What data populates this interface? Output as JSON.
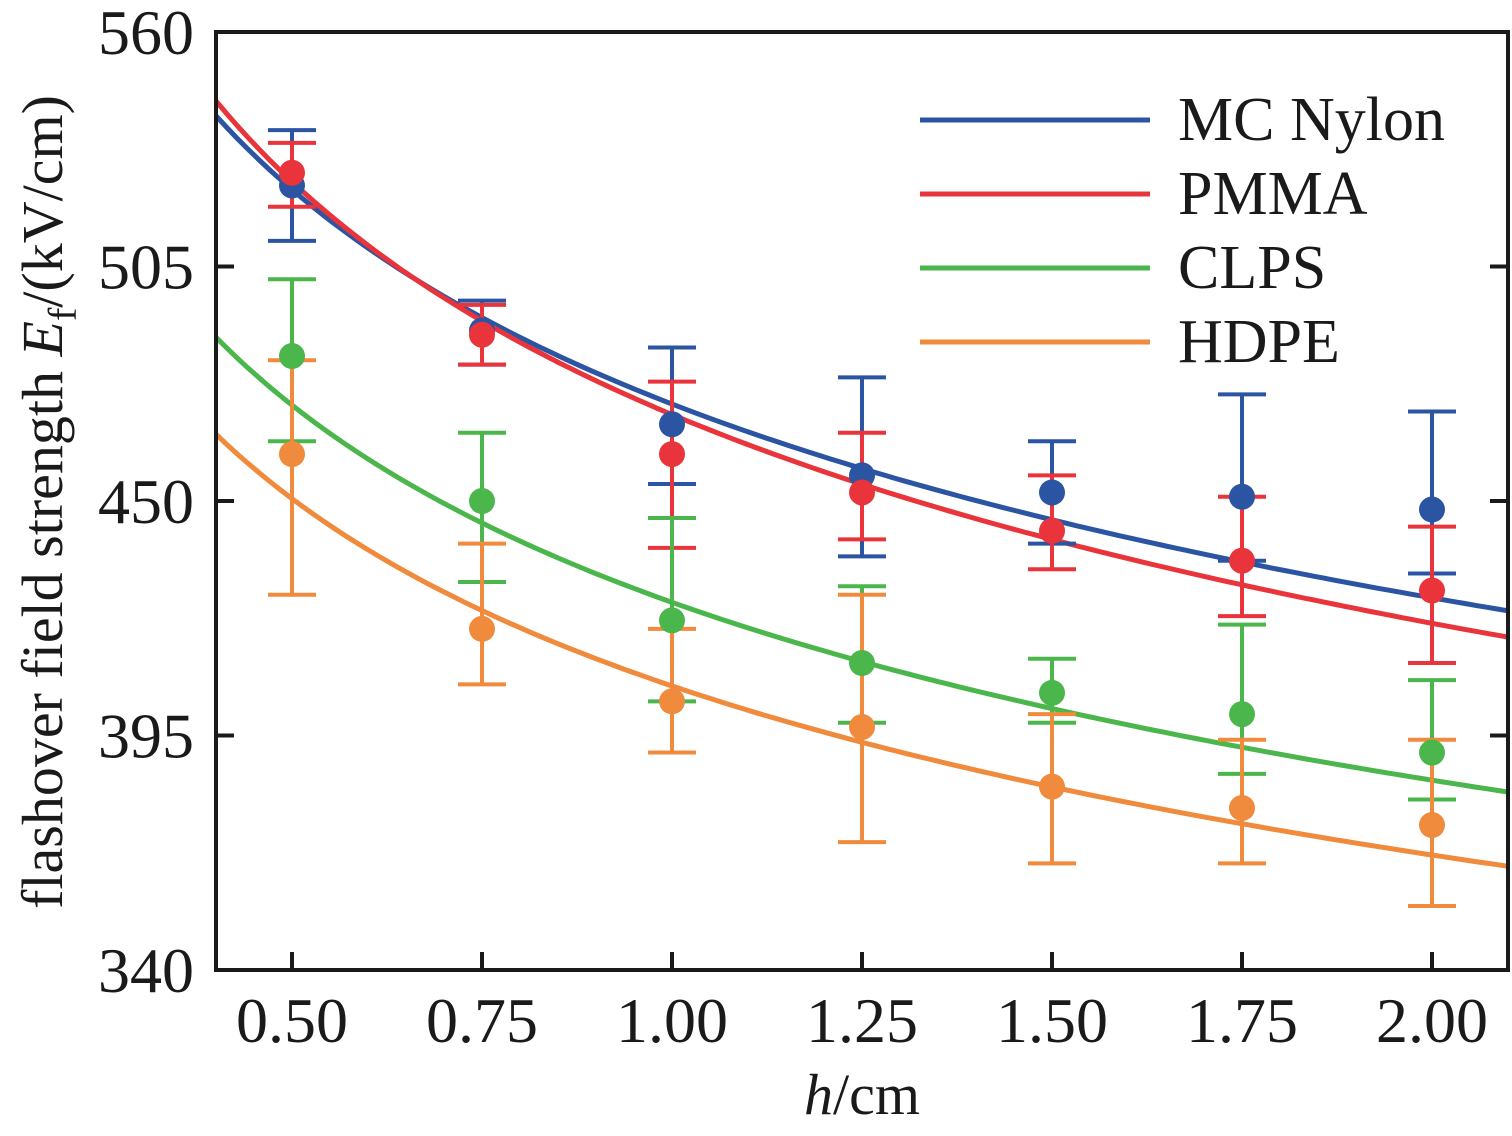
{
  "chart_data": {
    "type": "scatter",
    "title": "",
    "xlabel_var": "h",
    "xlabel_unit": "/cm",
    "ylabel_main": "flashover field strength ",
    "ylabel_var": "E",
    "ylabel_sub": "f",
    "ylabel_unit": "/(kV/cm)",
    "xlim": [
      0.4,
      2.1
    ],
    "ylim": [
      340,
      560
    ],
    "xticks": [
      0.5,
      0.75,
      1.0,
      1.25,
      1.5,
      1.75,
      2.0
    ],
    "xtick_labels": [
      "0.50",
      "0.75",
      "1.00",
      "1.25",
      "1.50",
      "1.75",
      "2.00"
    ],
    "yticks": [
      340,
      395,
      450,
      505,
      560
    ],
    "ytick_labels": [
      "340",
      "395",
      "450",
      "505",
      "560"
    ],
    "grid": false,
    "legend_position": "top-right",
    "series": [
      {
        "name": "MC Nylon",
        "color": "#2b55a3",
        "x": [
          0.5,
          0.75,
          1.0,
          1.25,
          1.5,
          1.75,
          2.0
        ],
        "y": [
          524,
          490,
          468,
          456,
          452,
          451,
          448
        ],
        "err_low": [
          511,
          482,
          454,
          437,
          440,
          436,
          433
        ],
        "err_high": [
          537,
          497,
          486,
          479,
          464,
          475,
          471
        ],
        "fit": [
          525.7,
          491.2,
          471.0,
          456.6,
          445.5,
          436.4,
          428.6
        ]
      },
      {
        "name": "PMMA",
        "color": "#e8343a",
        "x": [
          0.5,
          0.75,
          1.0,
          1.25,
          1.5,
          1.75,
          2.0
        ],
        "y": [
          527,
          489,
          461,
          452,
          443,
          436,
          429
        ],
        "err_low": [
          519,
          482,
          439,
          441,
          434,
          423,
          412
        ],
        "err_high": [
          534,
          496,
          478,
          466,
          456,
          451,
          444
        ],
        "fit": [
          529.4,
          490.2,
          465.5,
          452.0,
          442.0,
          432.5,
          422.5
        ]
      },
      {
        "name": "CLPS",
        "color": "#4bb64b",
        "x": [
          0.5,
          0.75,
          1.0,
          1.25,
          1.5,
          1.75,
          2.0
        ],
        "y": [
          484,
          450,
          422,
          412,
          405,
          400,
          391
        ],
        "err_low": [
          464,
          431,
          403,
          398,
          398,
          386,
          380
        ],
        "err_high": [
          502,
          466,
          446,
          430,
          413,
          421,
          408
        ],
        "fit": [
          474.5,
          443.8,
          424.8,
          411.2,
          401.1,
          392.8,
          385.8
        ]
      },
      {
        "name": "HDPE",
        "color": "#f08a3c",
        "x": [
          0.5,
          0.75,
          1.0,
          1.25,
          1.5,
          1.75,
          2.0
        ],
        "y": [
          461,
          420,
          403,
          397,
          383,
          378,
          374
        ],
        "err_low": [
          428,
          407,
          391,
          370,
          365,
          365,
          355
        ],
        "err_high": [
          483,
          440,
          420,
          428,
          400,
          394,
          394
        ],
        "fit": [
          452.0,
          423.3,
          405.7,
          392.9,
          382.8,
          374.7,
          367.7
        ]
      }
    ]
  }
}
